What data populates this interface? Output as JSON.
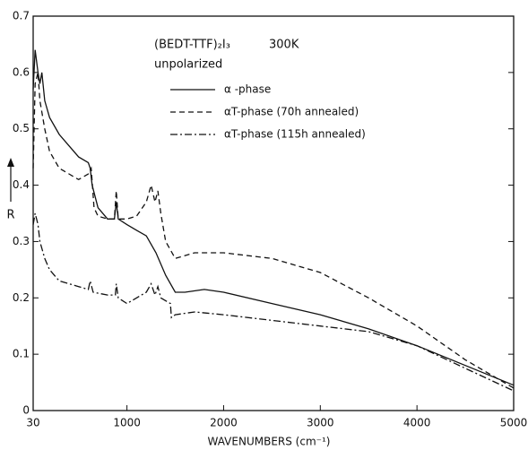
{
  "chart_data": {
    "type": "line",
    "title": "(BEDT-TTF)₂I₃",
    "subtitle": "300K",
    "annotation": "unpolarized",
    "x_label": "WAVENUMBERS (cm⁻¹)",
    "y_label": "R",
    "xlim": [
      30,
      5000
    ],
    "xticks": [
      30,
      1000,
      2000,
      3000,
      4000,
      5000
    ],
    "ylim": [
      0,
      0.7
    ],
    "yticks": [
      0,
      0.1,
      0.2,
      0.3,
      0.4,
      0.5,
      0.6,
      0.7
    ],
    "series": [
      {
        "name": "α -phase",
        "color": "#111111",
        "style": "solid",
        "x": [
          30,
          50,
          80,
          100,
          120,
          150,
          200,
          300,
          400,
          500,
          600,
          620,
          640,
          700,
          800,
          870,
          890,
          910,
          1000,
          1100,
          1200,
          1300,
          1400,
          1500,
          1600,
          1800,
          2000,
          2500,
          3000,
          3500,
          4000,
          4500,
          5000
        ],
        "values": [
          0.57,
          0.64,
          0.6,
          0.58,
          0.6,
          0.55,
          0.52,
          0.49,
          0.47,
          0.45,
          0.44,
          0.43,
          0.4,
          0.36,
          0.34,
          0.34,
          0.37,
          0.34,
          0.33,
          0.32,
          0.31,
          0.28,
          0.24,
          0.21,
          0.21,
          0.215,
          0.21,
          0.19,
          0.17,
          0.145,
          0.115,
          0.08,
          0.045
        ]
      },
      {
        "name": "αT-phase (70h annealed)",
        "color": "#111111",
        "style": "dashed",
        "x": [
          30,
          50,
          80,
          100,
          150,
          200,
          300,
          400,
          500,
          600,
          630,
          660,
          700,
          800,
          870,
          890,
          910,
          1000,
          1100,
          1200,
          1250,
          1290,
          1320,
          1350,
          1400,
          1500,
          1700,
          2000,
          2500,
          3000,
          3500,
          4000,
          4500,
          5000
        ],
        "values": [
          0.43,
          0.58,
          0.6,
          0.55,
          0.5,
          0.46,
          0.43,
          0.42,
          0.41,
          0.42,
          0.43,
          0.36,
          0.345,
          0.34,
          0.34,
          0.39,
          0.34,
          0.34,
          0.345,
          0.37,
          0.4,
          0.37,
          0.39,
          0.35,
          0.3,
          0.27,
          0.28,
          0.28,
          0.27,
          0.245,
          0.2,
          0.15,
          0.09,
          0.04
        ]
      },
      {
        "name": "αT-phase (115h annealed)",
        "color": "#111111",
        "style": "dashdot",
        "x": [
          30,
          50,
          80,
          100,
          150,
          200,
          300,
          500,
          600,
          620,
          650,
          800,
          880,
          890,
          910,
          1000,
          1100,
          1200,
          1250,
          1290,
          1320,
          1350,
          1450,
          1460,
          1500,
          1700,
          2000,
          2500,
          3000,
          3500,
          4000,
          4500,
          5000
        ],
        "values": [
          0.33,
          0.35,
          0.33,
          0.3,
          0.27,
          0.25,
          0.23,
          0.22,
          0.215,
          0.23,
          0.21,
          0.205,
          0.205,
          0.225,
          0.2,
          0.19,
          0.2,
          0.21,
          0.225,
          0.205,
          0.22,
          0.2,
          0.19,
          0.165,
          0.17,
          0.175,
          0.17,
          0.16,
          0.15,
          0.14,
          0.115,
          0.075,
          0.035
        ]
      }
    ]
  }
}
